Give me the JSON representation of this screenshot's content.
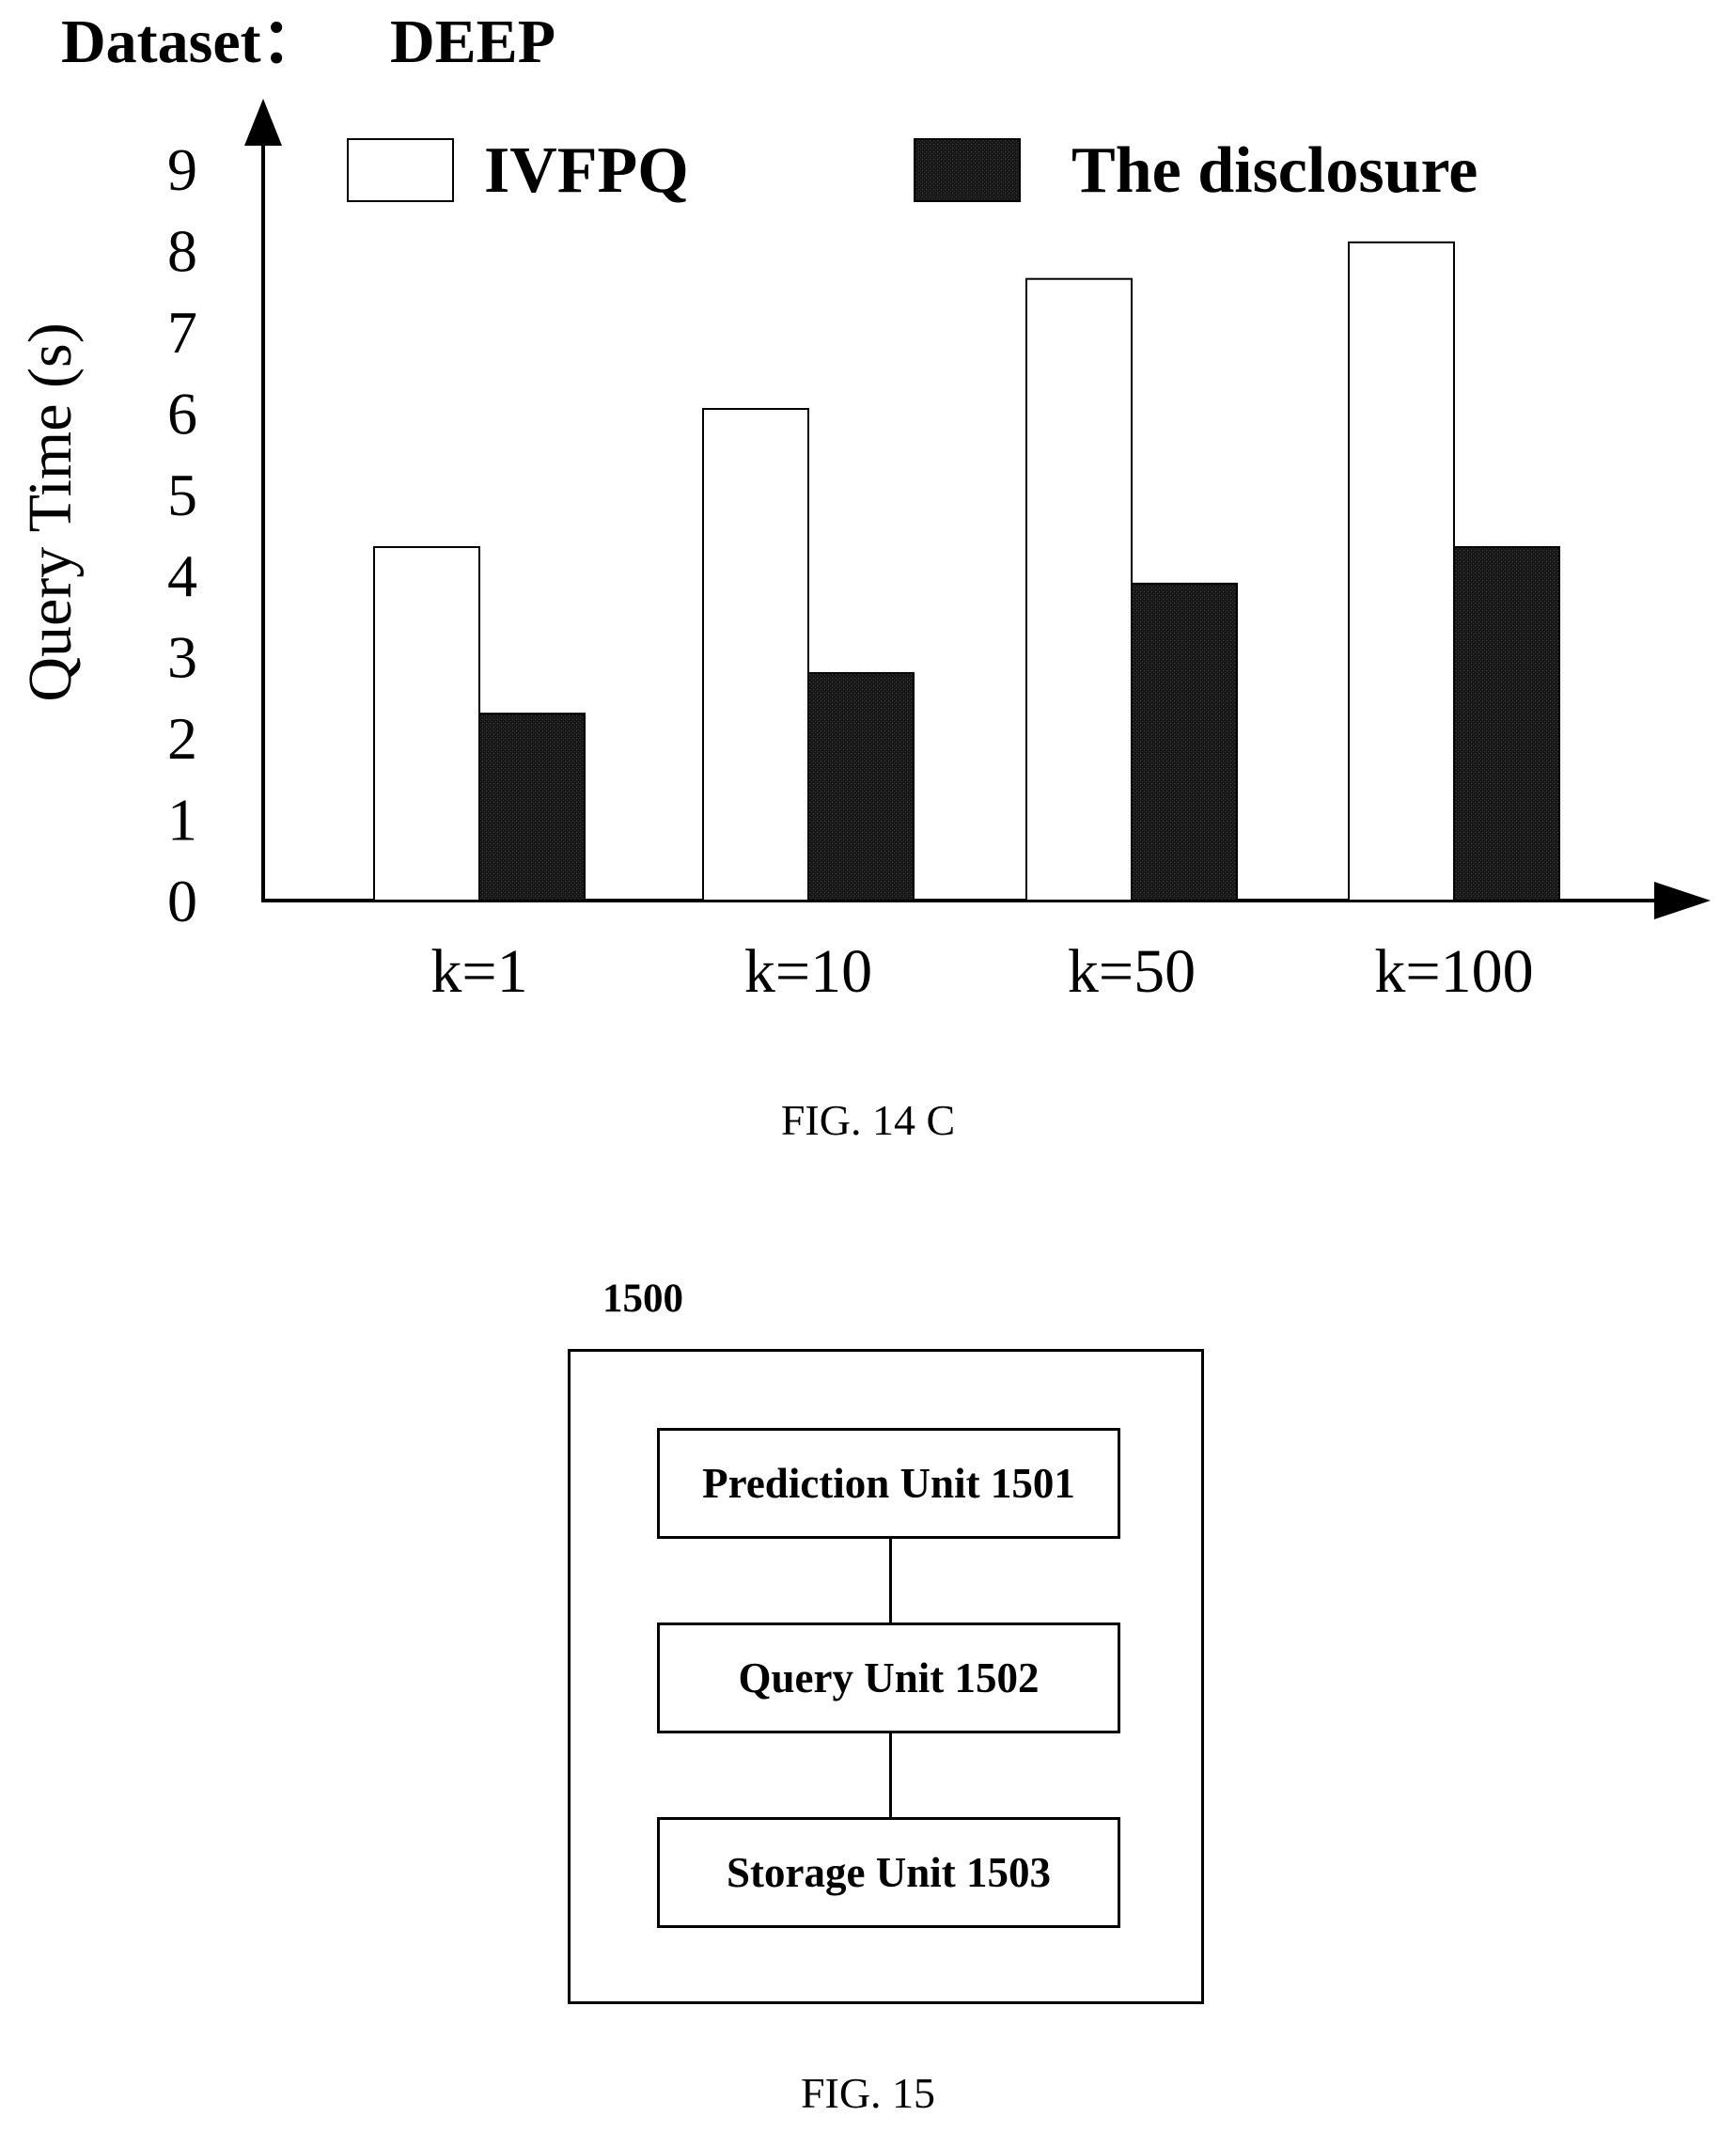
{
  "chart_data": {
    "type": "bar",
    "title_label": "Dataset：",
    "title_value": "DEEP",
    "ylabel": "Query Time (s)",
    "xlabel": "",
    "ylim": [
      0,
      9
    ],
    "yticks": [
      "0",
      "1",
      "2",
      "3",
      "4",
      "5",
      "6",
      "7",
      "8",
      "9"
    ],
    "categories": [
      "k=1",
      "k=10",
      "k=50",
      "k=100"
    ],
    "series": [
      {
        "name": "IVFPQ",
        "values": [
          4.35,
          6.05,
          7.65,
          8.1
        ],
        "color": "#ffffff"
      },
      {
        "name": "The disclosure",
        "values": [
          2.3,
          2.8,
          3.9,
          4.35
        ],
        "color": "#1a1a1a"
      }
    ],
    "legend_position": "top",
    "grid": false
  },
  "figures": {
    "fig14_caption": "FIG. 14 C",
    "fig15_caption": "FIG. 15"
  },
  "diagram": {
    "system_label": "1500",
    "units": [
      {
        "label": "Prediction Unit 1501"
      },
      {
        "label": "Query Unit 1502"
      },
      {
        "label": "Storage Unit 1503"
      }
    ]
  }
}
